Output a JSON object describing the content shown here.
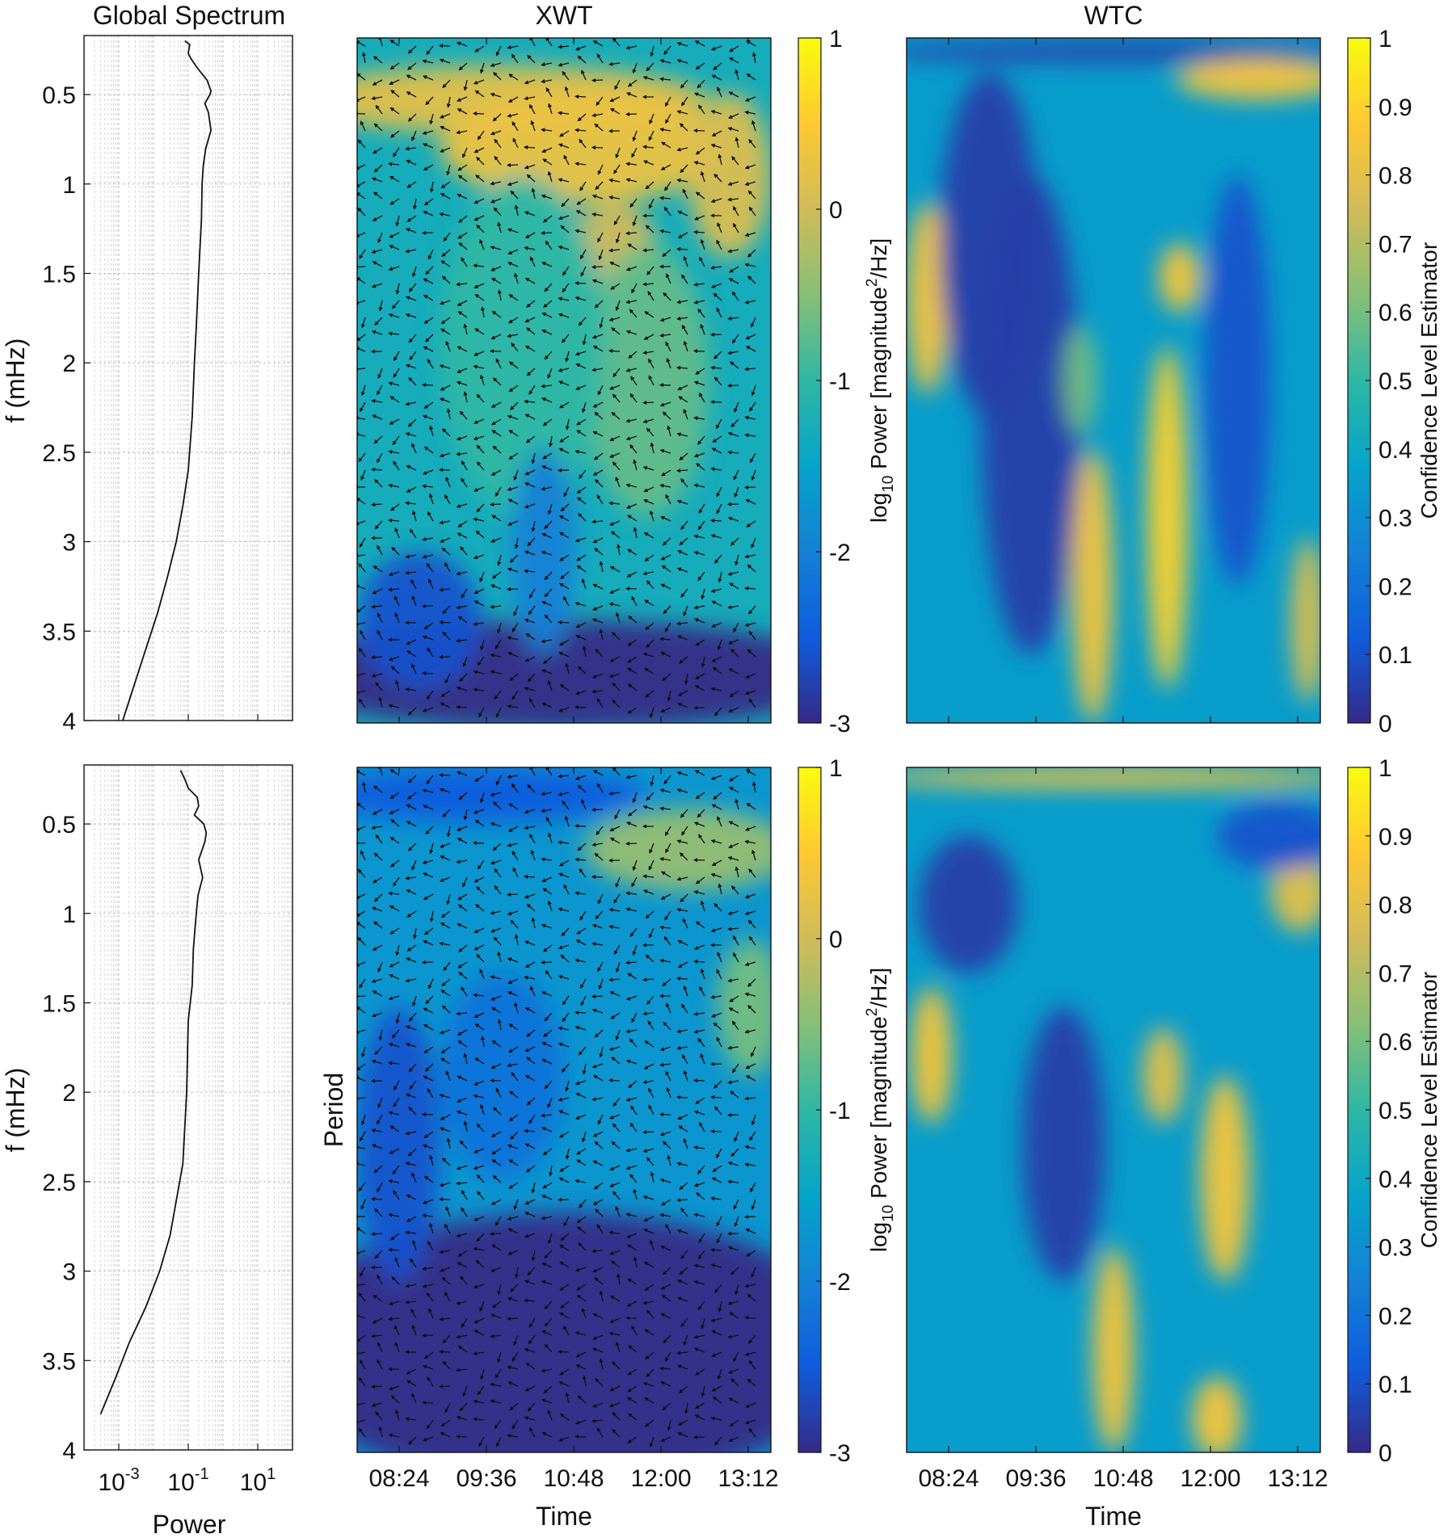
{
  "colors": {
    "axis": "#111111",
    "grid": "#b8b8b8",
    "curve": "#111111",
    "arrow": "#111111",
    "parula": [
      "#352a87",
      "#0f5cdd",
      "#1481d6",
      "#06a4ca",
      "#2eb7a4",
      "#87bf77",
      "#d1bb59",
      "#fec832",
      "#f9fb0e"
    ]
  },
  "chart_data": [
    {
      "id": "global-top",
      "type": "line",
      "title": "Global Spectrum",
      "ylabel": "f (mHz)",
      "xlabel": "",
      "xscale": "log",
      "xlim": [
        0.0001,
        100
      ],
      "ylim": [
        0.17,
        4
      ],
      "yreversed": true,
      "grid": true,
      "xticks": [
        0.001,
        0.1,
        10
      ],
      "xticklabels": [],
      "yticks": [
        0.5,
        1,
        1.5,
        2,
        2.5,
        3,
        3.5,
        4
      ],
      "yticklabels": [
        "0.5",
        "1",
        "1.5",
        "2",
        "2.5",
        "3",
        "3.5",
        "4"
      ],
      "series": [
        {
          "f": [
            0.2,
            0.22,
            0.27,
            0.3,
            0.35,
            0.42,
            0.48,
            0.5,
            0.55,
            0.6,
            0.7,
            0.8,
            0.9,
            1.0,
            1.2,
            1.5,
            1.8,
            2.0,
            2.3,
            2.6,
            2.8,
            3.0,
            3.2,
            3.4,
            3.6,
            3.8,
            4.0
          ],
          "power": [
            0.08,
            0.11,
            0.1,
            0.12,
            0.18,
            0.35,
            0.45,
            0.42,
            0.3,
            0.38,
            0.45,
            0.32,
            0.27,
            0.25,
            0.24,
            0.2,
            0.17,
            0.15,
            0.13,
            0.1,
            0.07,
            0.045,
            0.025,
            0.013,
            0.006,
            0.0028,
            0.0013
          ]
        }
      ]
    },
    {
      "id": "xwt-top",
      "type": "heatmap",
      "title": "XWT",
      "ylabel": "",
      "xlabel": "",
      "colorbar_label": "log10 Power [magnitude^2/Hz]",
      "clim": [
        -3,
        1
      ],
      "colorbar_ticks": [
        "1",
        "0",
        "-1",
        "-2",
        "-3"
      ],
      "arrows": true,
      "xticklabels": [],
      "blobs": [
        {
          "x": 0.35,
          "y": 0.09,
          "rx": 0.5,
          "ry": 0.05,
          "v": 0.2
        },
        {
          "x": 0.55,
          "y": 0.16,
          "rx": 0.35,
          "ry": 0.08,
          "v": 0.3
        },
        {
          "x": 0.9,
          "y": 0.2,
          "rx": 0.1,
          "ry": 0.12,
          "v": 0.1
        },
        {
          "x": 0.62,
          "y": 0.3,
          "rx": 0.1,
          "ry": 0.06,
          "v": 0.0
        },
        {
          "x": 0.7,
          "y": 0.5,
          "rx": 0.15,
          "ry": 0.2,
          "v": -0.7
        },
        {
          "x": 0.4,
          "y": 0.45,
          "rx": 0.2,
          "ry": 0.25,
          "v": -1.0
        },
        {
          "x": 0.5,
          "y": 0.93,
          "rx": 0.7,
          "ry": 0.08,
          "v": -3.0
        },
        {
          "x": 0.15,
          "y": 0.85,
          "rx": 0.15,
          "ry": 0.1,
          "v": -2.6
        },
        {
          "x": 0.45,
          "y": 0.75,
          "rx": 0.08,
          "ry": 0.15,
          "v": -2.0
        }
      ],
      "base": -1.3
    },
    {
      "id": "wtc-top",
      "type": "heatmap",
      "title": "WTC",
      "ylabel": "",
      "xlabel": "",
      "colorbar_label": "Confidence Level Estimator",
      "clim": [
        0,
        1
      ],
      "colorbar_ticks": [
        "1",
        "0.9",
        "0.8",
        "0.7",
        "0.6",
        "0.5",
        "0.4",
        "0.3",
        "0.2",
        "0.1",
        "0"
      ],
      "arrows": false,
      "xticklabels": [],
      "blobs": [
        {
          "x": 0.5,
          "y": 0.02,
          "rx": 0.6,
          "ry": 0.015,
          "v": 0.05
        },
        {
          "x": 0.85,
          "y": 0.06,
          "rx": 0.2,
          "ry": 0.03,
          "v": 0.85
        },
        {
          "x": 0.05,
          "y": 0.38,
          "rx": 0.05,
          "ry": 0.14,
          "v": 0.85
        },
        {
          "x": 0.2,
          "y": 0.3,
          "rx": 0.12,
          "ry": 0.25,
          "v": 0.05
        },
        {
          "x": 0.3,
          "y": 0.55,
          "rx": 0.12,
          "ry": 0.35,
          "v": 0.05
        },
        {
          "x": 0.45,
          "y": 0.8,
          "rx": 0.05,
          "ry": 0.2,
          "v": 0.85
        },
        {
          "x": 0.63,
          "y": 0.7,
          "rx": 0.05,
          "ry": 0.25,
          "v": 0.9
        },
        {
          "x": 0.66,
          "y": 0.35,
          "rx": 0.05,
          "ry": 0.05,
          "v": 0.85
        },
        {
          "x": 0.8,
          "y": 0.5,
          "rx": 0.08,
          "ry": 0.3,
          "v": 0.1
        },
        {
          "x": 0.97,
          "y": 0.85,
          "rx": 0.04,
          "ry": 0.12,
          "v": 0.8
        },
        {
          "x": 0.42,
          "y": 0.5,
          "rx": 0.04,
          "ry": 0.08,
          "v": 0.6
        }
      ],
      "base": 0.35
    },
    {
      "id": "global-bottom",
      "type": "line",
      "title": "",
      "ylabel": "f (mHz)",
      "xlabel": "Power",
      "xscale": "log",
      "xlim": [
        0.0001,
        100
      ],
      "ylim": [
        0.17,
        4
      ],
      "yreversed": true,
      "grid": true,
      "xticks": [
        0.001,
        0.1,
        10
      ],
      "xticklabels": [
        "10-3",
        "10-1",
        "101"
      ],
      "yticks": [
        0.5,
        1,
        1.5,
        2,
        2.5,
        3,
        3.5,
        4
      ],
      "yticklabels": [
        "0.5",
        "1",
        "1.5",
        "2",
        "2.5",
        "3",
        "3.5",
        "4"
      ],
      "series": [
        {
          "f": [
            0.2,
            0.25,
            0.3,
            0.35,
            0.4,
            0.45,
            0.5,
            0.55,
            0.6,
            0.7,
            0.8,
            0.9,
            1.0,
            1.2,
            1.4,
            1.6,
            2.0,
            2.4,
            2.8,
            3.0,
            3.2,
            3.4,
            3.6,
            3.8
          ],
          "power": [
            0.06,
            0.08,
            0.1,
            0.18,
            0.2,
            0.15,
            0.28,
            0.33,
            0.3,
            0.2,
            0.26,
            0.19,
            0.17,
            0.14,
            0.13,
            0.1,
            0.09,
            0.07,
            0.03,
            0.015,
            0.006,
            0.002,
            0.0008,
            0.0003
          ]
        }
      ]
    },
    {
      "id": "xwt-bottom",
      "type": "heatmap",
      "title": "",
      "ylabel": "Period",
      "xlabel": "Time",
      "colorbar_label": "log10 Power [magnitude^2/Hz]",
      "clim": [
        -3,
        1
      ],
      "colorbar_ticks": [
        "1",
        "0",
        "-1",
        "-2",
        "-3"
      ],
      "arrows": true,
      "xticklabels": [
        "08:24",
        "09:36",
        "10:48",
        "12:00",
        "13:12"
      ],
      "blobs": [
        {
          "x": 0.3,
          "y": 0.04,
          "rx": 0.4,
          "ry": 0.04,
          "v": -2.5
        },
        {
          "x": 0.8,
          "y": 0.12,
          "rx": 0.25,
          "ry": 0.06,
          "v": -0.4
        },
        {
          "x": 0.95,
          "y": 0.35,
          "rx": 0.08,
          "ry": 0.1,
          "v": -0.6
        },
        {
          "x": 0.5,
          "y": 0.85,
          "rx": 0.7,
          "ry": 0.2,
          "v": -3.0
        },
        {
          "x": 0.1,
          "y": 0.55,
          "rx": 0.1,
          "ry": 0.2,
          "v": -2.6
        },
        {
          "x": 0.35,
          "y": 0.45,
          "rx": 0.15,
          "ry": 0.15,
          "v": -2.2
        }
      ],
      "base": -1.7
    },
    {
      "id": "wtc-bottom",
      "type": "heatmap",
      "title": "",
      "ylabel": "",
      "xlabel": "Time",
      "colorbar_label": "Confidence Level Estimator",
      "clim": [
        0,
        1
      ],
      "colorbar_ticks": [
        "1",
        "0.9",
        "0.8",
        "0.7",
        "0.6",
        "0.5",
        "0.4",
        "0.3",
        "0.2",
        "0.1",
        "0"
      ],
      "arrows": false,
      "xticklabels": [
        "08:24",
        "09:36",
        "10:48",
        "12:00",
        "13:12"
      ],
      "blobs": [
        {
          "x": 0.5,
          "y": 0.015,
          "rx": 0.6,
          "ry": 0.015,
          "v": 0.85
        },
        {
          "x": 0.95,
          "y": 0.18,
          "rx": 0.07,
          "ry": 0.06,
          "v": 0.8
        },
        {
          "x": 0.06,
          "y": 0.42,
          "rx": 0.05,
          "ry": 0.1,
          "v": 0.85
        },
        {
          "x": 0.62,
          "y": 0.45,
          "rx": 0.05,
          "ry": 0.07,
          "v": 0.8
        },
        {
          "x": 0.77,
          "y": 0.6,
          "rx": 0.06,
          "ry": 0.15,
          "v": 0.85
        },
        {
          "x": 0.5,
          "y": 0.85,
          "rx": 0.05,
          "ry": 0.15,
          "v": 0.85
        },
        {
          "x": 0.38,
          "y": 0.55,
          "rx": 0.1,
          "ry": 0.2,
          "v": 0.05
        },
        {
          "x": 0.15,
          "y": 0.2,
          "rx": 0.12,
          "ry": 0.1,
          "v": 0.05
        },
        {
          "x": 0.9,
          "y": 0.1,
          "rx": 0.15,
          "ry": 0.05,
          "v": 0.1
        },
        {
          "x": 0.75,
          "y": 0.95,
          "rx": 0.06,
          "ry": 0.06,
          "v": 0.85
        }
      ],
      "base": 0.35
    }
  ]
}
